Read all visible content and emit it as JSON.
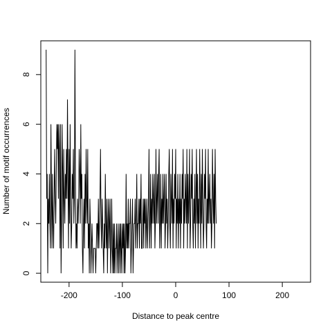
{
  "chart_data": {
    "type": "line",
    "title": "",
    "xlabel": "Distance to peak centre",
    "ylabel": "Number of motif occurrences",
    "xlim": [
      -253,
      253
    ],
    "ylim": [
      -0.36,
      9.36
    ],
    "x_ticks": [
      -200,
      -100,
      0,
      100,
      200
    ],
    "x_tick_labels": [
      "-200",
      "-100",
      "0",
      "100",
      "200"
    ],
    "y_ticks": [
      0,
      2,
      4,
      6,
      8
    ],
    "y_tick_labels": [
      "0",
      "2",
      "4",
      "6",
      "8"
    ],
    "grid": false,
    "line_color": "#000000",
    "series": [
      {
        "x_start": -243,
        "x_step": 1,
        "values": [
          9,
          3,
          4,
          0,
          3,
          2,
          4,
          2,
          1,
          6,
          3,
          1,
          4,
          2,
          1,
          3,
          5,
          3,
          2,
          4,
          6,
          5,
          6,
          3,
          6,
          5,
          1,
          6,
          0,
          2,
          6,
          4,
          1,
          5,
          3,
          2,
          4,
          3,
          5,
          3,
          7,
          4,
          1,
          5,
          2,
          6,
          3,
          1,
          2,
          4,
          3,
          5,
          2,
          3,
          9,
          4,
          1,
          2,
          1,
          3,
          2,
          3,
          5,
          4,
          2,
          6,
          3,
          4,
          1,
          0,
          2,
          3,
          1,
          4,
          2,
          5,
          3,
          2,
          5,
          1,
          2,
          0,
          3,
          2,
          0,
          1,
          2,
          1,
          0,
          1,
          1,
          1,
          1,
          0,
          1,
          2,
          2,
          1,
          3,
          1,
          2,
          3,
          5,
          2,
          1,
          3,
          2,
          1,
          0,
          2,
          1,
          4,
          2,
          1,
          3,
          0,
          2,
          3,
          1,
          2,
          3,
          0,
          1,
          3,
          1,
          0,
          2,
          0,
          2,
          0,
          1,
          1,
          2,
          0,
          1,
          2,
          0,
          1,
          2,
          0,
          2,
          1,
          0,
          2,
          1,
          2,
          0,
          2,
          0,
          1,
          4,
          1,
          2,
          1,
          3,
          1,
          2,
          2,
          3,
          0,
          1,
          2,
          3,
          0,
          1,
          2,
          2,
          3,
          1,
          2,
          4,
          1,
          2,
          2,
          3,
          1,
          3,
          2,
          4,
          1,
          1,
          2,
          3,
          1,
          3,
          2,
          3,
          1,
          2,
          3,
          1,
          2,
          3,
          5,
          1,
          2,
          4,
          1,
          3,
          2,
          4,
          3,
          2,
          4,
          1,
          2,
          5,
          2,
          3,
          4,
          2,
          4,
          5,
          1,
          2,
          4,
          1,
          3,
          2,
          4,
          2,
          3,
          4,
          1,
          2,
          4,
          2,
          3,
          1,
          2,
          4,
          5,
          2,
          1,
          4,
          3,
          2,
          5,
          1,
          3,
          2,
          4,
          3,
          5,
          1,
          3,
          2,
          4,
          1,
          3,
          2,
          4,
          1,
          3,
          2,
          4,
          3,
          5,
          1,
          3,
          2,
          4,
          3,
          2,
          5,
          1,
          4,
          2,
          3,
          5,
          1,
          2,
          4,
          3,
          5,
          2,
          1,
          3,
          2,
          4,
          1,
          3,
          5,
          2,
          4,
          1,
          3,
          2,
          5,
          3,
          1,
          4,
          2,
          5,
          3,
          1,
          2,
          4,
          3,
          5,
          2,
          1,
          3,
          2,
          5,
          2,
          3,
          4,
          2,
          3,
          1,
          2,
          5,
          3,
          2,
          4,
          1,
          5,
          3,
          2
        ]
      }
    ]
  }
}
